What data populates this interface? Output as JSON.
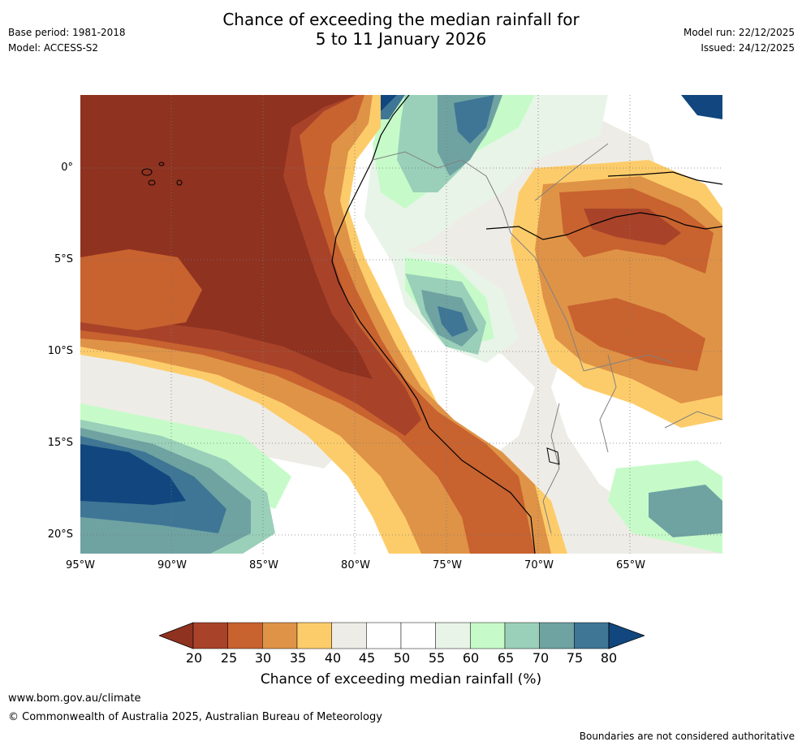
{
  "header": {
    "title_line1": "Chance of exceeding the median rainfall for",
    "title_line2": "5 to 11 January 2026",
    "base_period": "Base period: 1981-2018",
    "model": "Model: ACCESS-S2",
    "model_run": "Model run: 22/12/2025",
    "issued": "Issued: 24/12/2025"
  },
  "map": {
    "lat_labels": [
      "0°",
      "5°S",
      "10°S",
      "15°S",
      "20°S"
    ],
    "lon_labels": [
      "95°W",
      "90°W",
      "85°W",
      "80°W",
      "75°W",
      "70°W",
      "65°W"
    ]
  },
  "colorbar": {
    "ticks": [
      "20",
      "25",
      "30",
      "35",
      "40",
      "45",
      "50",
      "55",
      "60",
      "65",
      "70",
      "75",
      "80"
    ],
    "title": "Chance of exceeding median rainfall (%)",
    "colors": [
      "#8f3220",
      "#a8432a",
      "#c8622f",
      "#df9347",
      "#fdcc6a",
      "#eeece6",
      "#ffffff",
      "#ffffff",
      "#e8f4e8",
      "#c6fbc9",
      "#9ad0b9",
      "#6fa3a2",
      "#3f7695",
      "#11477e"
    ]
  },
  "footer": {
    "url": "www.bom.gov.au/climate",
    "copyright": "© Commonwealth of Australia 2025, Australian Bureau of Meteorology",
    "note": "Boundaries are not considered authoritative"
  },
  "chart_data": {
    "type": "heatmap",
    "title": "Chance of exceeding the median rainfall for 5 to 11 January 2026",
    "value_label": "Chance of exceeding median rainfall (%)",
    "color_scale": [
      20,
      25,
      30,
      35,
      40,
      45,
      50,
      55,
      60,
      65,
      70,
      75,
      80
    ],
    "lon_range": [
      -95,
      -60
    ],
    "lat_range": [
      -21,
      4
    ],
    "regions": [
      {
        "name": "equatorial Pacific west of Galapagos",
        "approx_value": 20
      },
      {
        "name": "Pacific off Peru/Chile coast",
        "approx_value": 20
      },
      {
        "name": "SE Pacific near 15–20°S 95–88°W",
        "approx_value": 80
      },
      {
        "name": "Colombia / Andes north",
        "approx_value": 70
      },
      {
        "name": "western Amazon 9°S 75°W",
        "approx_value": 75
      },
      {
        "name": "central Amazon 2–5°S 68–62°W",
        "approx_value": 25
      },
      {
        "name": "SW Amazon 8–12°S 70–62°W",
        "approx_value": 30
      },
      {
        "name": "southern Peru / Altiplano",
        "approx_value": 35
      }
    ]
  }
}
